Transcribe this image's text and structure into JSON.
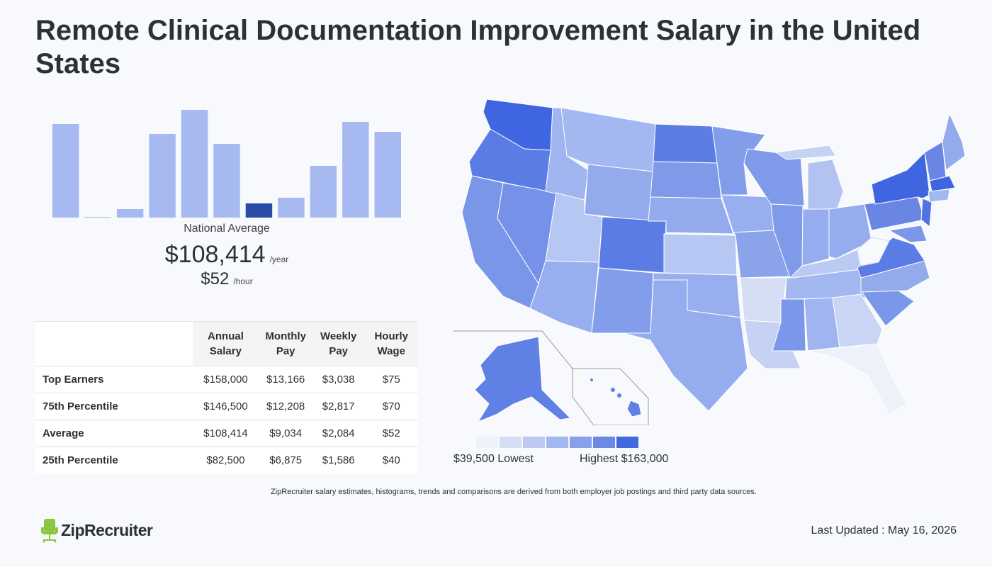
{
  "page": {
    "title": "Remote Clinical Documentation Improvement Salary in the United States"
  },
  "chart_data": [
    {
      "type": "bar",
      "title": "",
      "values": [
        132,
        1,
        12,
        118,
        152,
        104,
        20,
        28,
        73,
        135,
        121
      ],
      "highlight_index": 6,
      "bar_color": "#a7b9f1",
      "highlight_color": "#2a4ba8",
      "caption": "National Average"
    },
    {
      "type": "choropleth",
      "legend": {
        "low": "$39,500 Lowest",
        "high": "Highest $163,000"
      },
      "legend_colors": [
        "#eef1fa",
        "#d6def6",
        "#bccaf3",
        "#a2b6ef",
        "#889fea",
        "#6e88e5",
        "#4468e0"
      ]
    }
  ],
  "salary": {
    "annual": "$108,414",
    "annual_unit": "/year",
    "hourly": "$52",
    "hourly_unit": "/hour"
  },
  "table": {
    "headers": [
      "Annual Salary",
      "Monthly Pay",
      "Weekly Pay",
      "Hourly Wage"
    ],
    "rows": [
      {
        "label": "Top Earners",
        "values": [
          "$158,000",
          "$13,166",
          "$3,038",
          "$75"
        ]
      },
      {
        "label": "75th Percentile",
        "values": [
          "$146,500",
          "$12,208",
          "$2,817",
          "$70"
        ]
      },
      {
        "label": "Average",
        "values": [
          "$108,414",
          "$9,034",
          "$2,084",
          "$52"
        ]
      },
      {
        "label": "25th Percentile",
        "values": [
          "$82,500",
          "$6,875",
          "$1,586",
          "$40"
        ]
      }
    ]
  },
  "footer": {
    "disclaimer": "ZipRecruiter salary estimates, histograms, trends and comparisons are derived from both employer job postings and third party data sources.",
    "brand": "ZipRecruiter",
    "last_updated": "Last Updated : May 16, 2026"
  },
  "colors": {
    "text": "#2d3136",
    "background": "#f7f9fc",
    "brand_green": "#8cc63f"
  }
}
